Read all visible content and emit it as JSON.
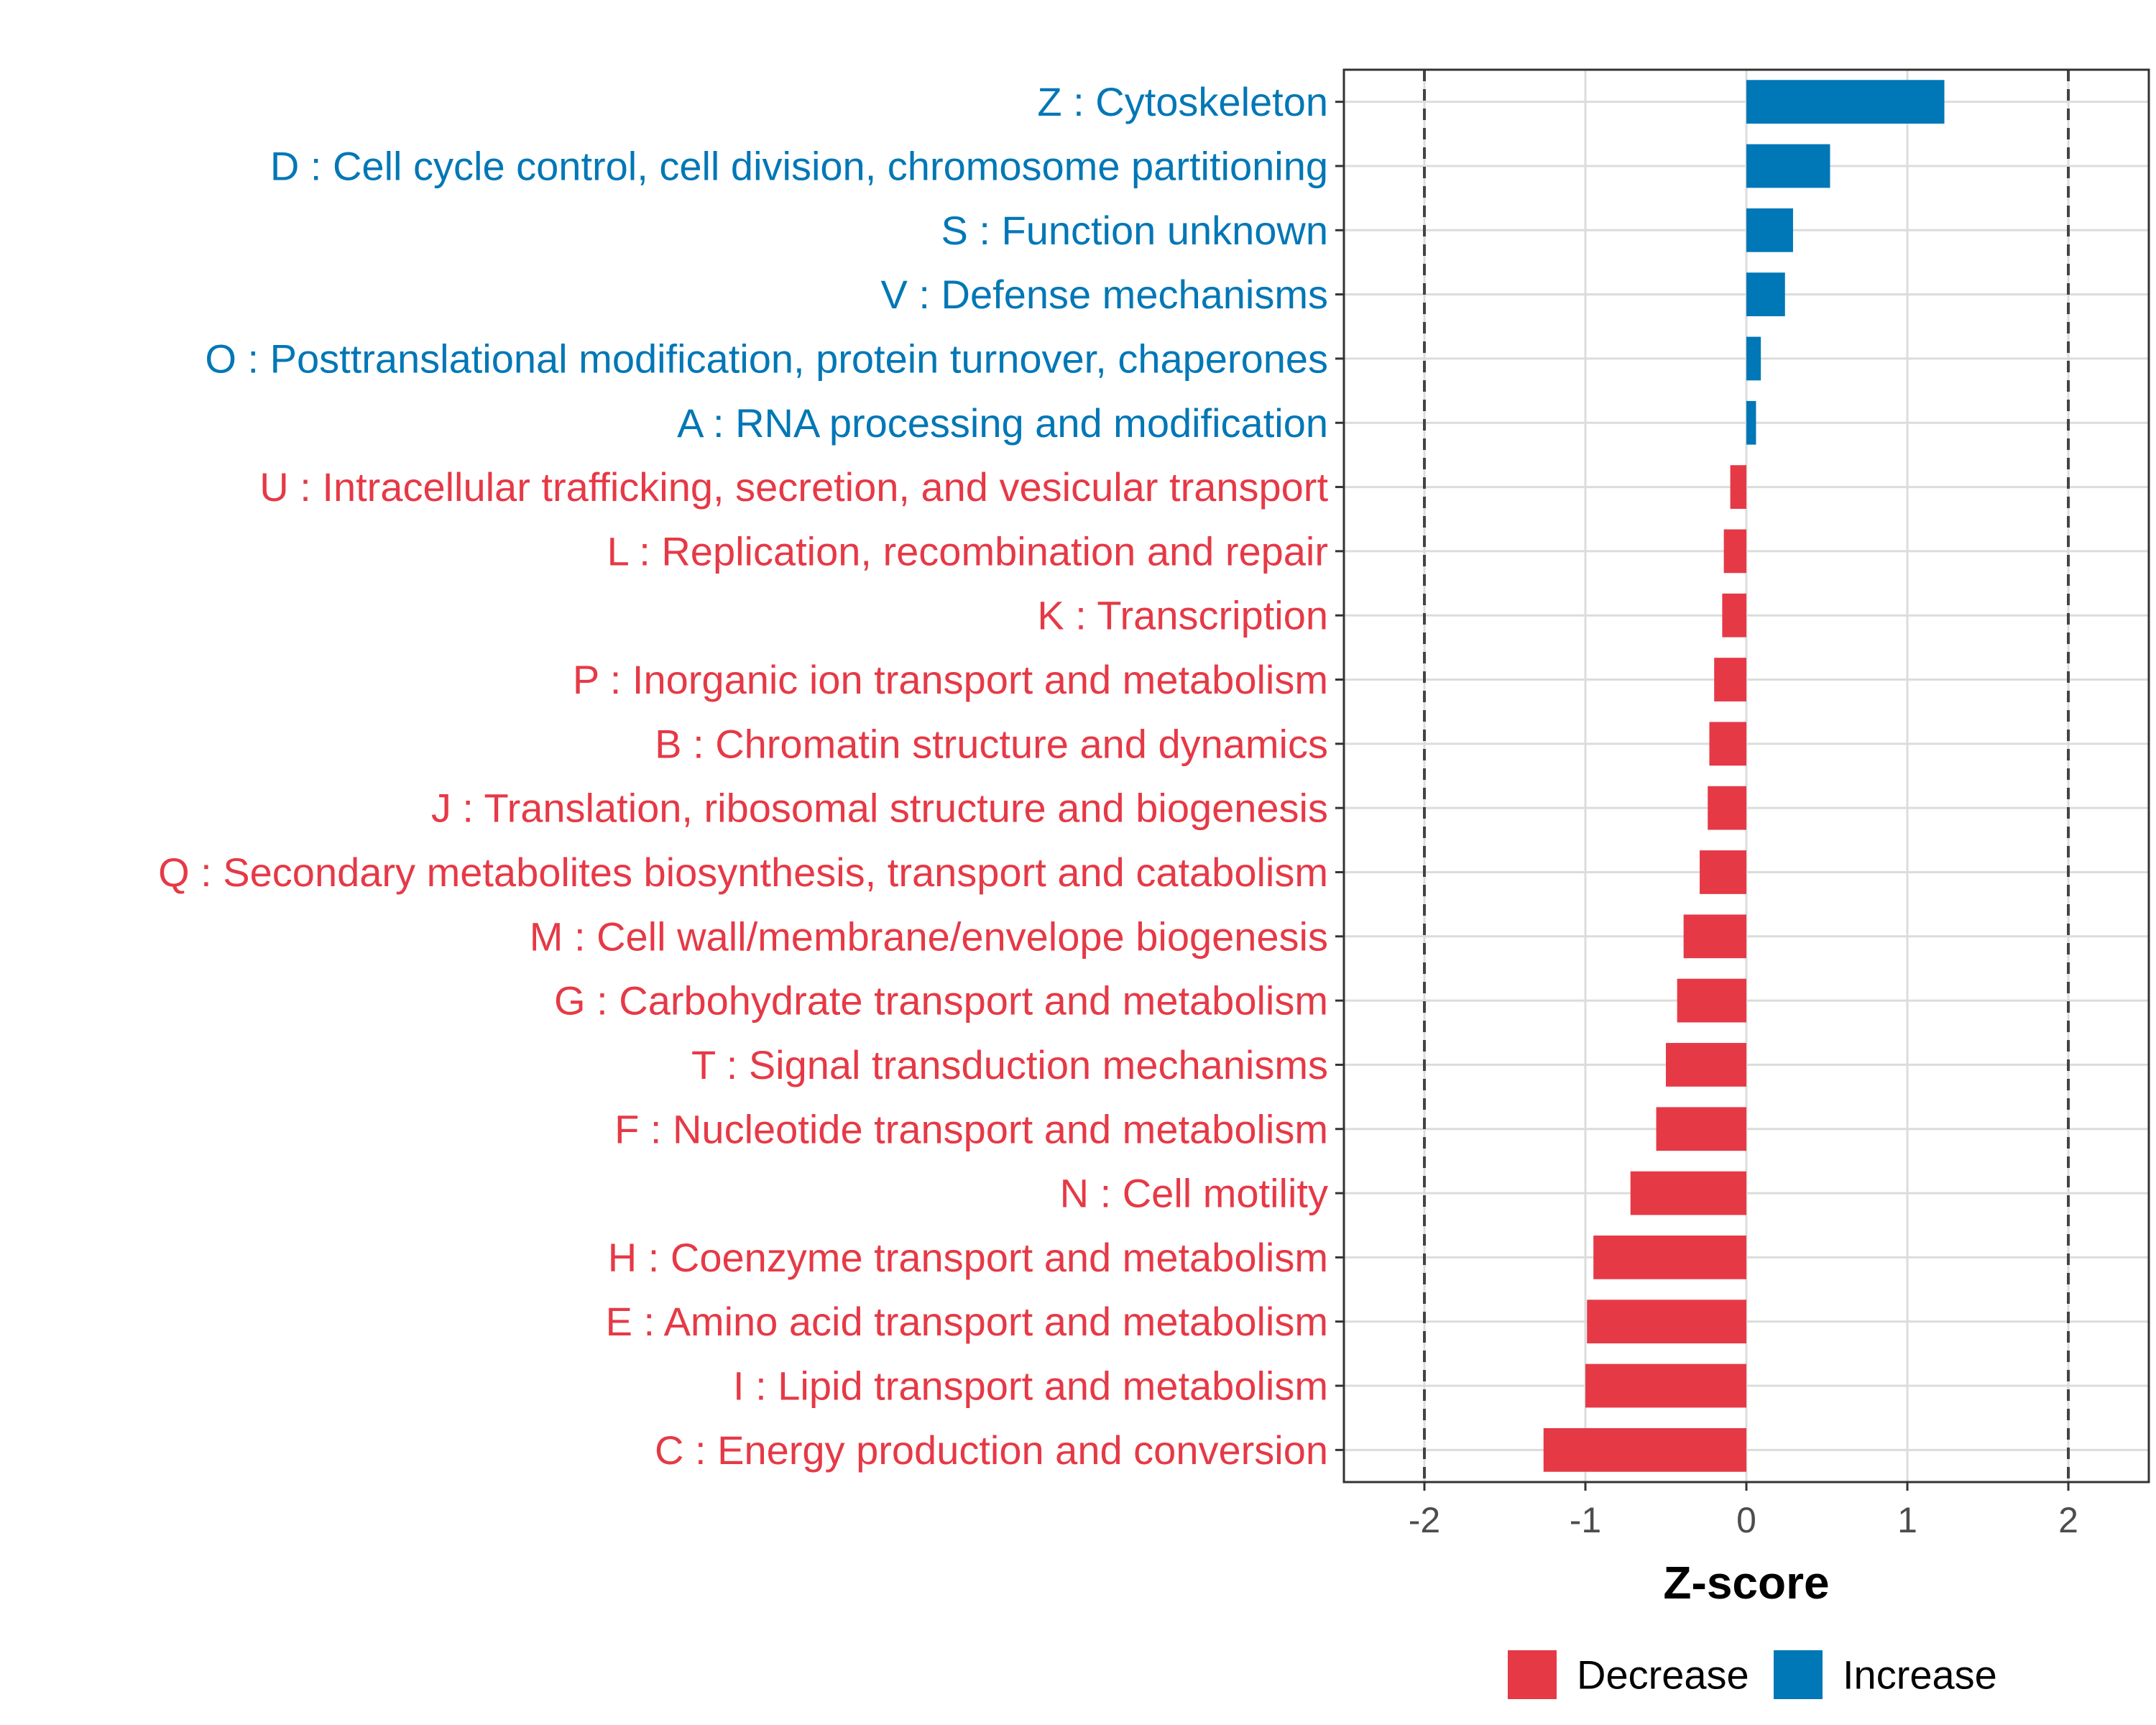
{
  "chart_data": {
    "type": "bar",
    "orientation": "horizontal",
    "title": "",
    "xlabel": "Z-score",
    "ylabel": "",
    "xlim": [
      -2.5,
      2.5
    ],
    "xticks": [
      -2,
      -1,
      0,
      1,
      2
    ],
    "xtick_labels": [
      "-2",
      "-1",
      "0",
      "1",
      "2"
    ],
    "reference_lines": [
      -2,
      2
    ],
    "grid": true,
    "colors": {
      "Increase": "#0077b6",
      "Decrease": "#e63946"
    },
    "categories": [
      "Z : Cytoskeleton",
      "D : Cell cycle control, cell division, chromosome partitioning",
      "S : Function unknown",
      "V : Defense mechanisms",
      "O : Posttranslational modification, protein turnover, chaperones",
      "A : RNA processing and modification",
      "U : Intracellular trafficking, secretion, and vesicular transport",
      "L : Replication, recombination and repair",
      "K : Transcription",
      "P : Inorganic ion transport and metabolism",
      "B : Chromatin structure and dynamics",
      "J : Translation, ribosomal structure and biogenesis",
      "Q : Secondary metabolites biosynthesis, transport and catabolism",
      "M : Cell wall/membrane/envelope biogenesis",
      "G : Carbohydrate transport and metabolism",
      "T : Signal transduction mechanisms",
      "F : Nucleotide transport and metabolism",
      "N : Cell motility",
      "H : Coenzyme transport and metabolism",
      "E : Amino acid transport and metabolism",
      "I : Lipid transport and metabolism",
      "C : Energy production and conversion"
    ],
    "values": [
      1.23,
      0.52,
      0.29,
      0.24,
      0.09,
      0.06,
      -0.1,
      -0.14,
      -0.15,
      -0.2,
      -0.23,
      -0.24,
      -0.29,
      -0.39,
      -0.43,
      -0.5,
      -0.56,
      -0.72,
      -0.95,
      -0.99,
      -1.0,
      -1.26
    ],
    "groups": [
      "Increase",
      "Increase",
      "Increase",
      "Increase",
      "Increase",
      "Increase",
      "Decrease",
      "Decrease",
      "Decrease",
      "Decrease",
      "Decrease",
      "Decrease",
      "Decrease",
      "Decrease",
      "Decrease",
      "Decrease",
      "Decrease",
      "Decrease",
      "Decrease",
      "Decrease",
      "Decrease",
      "Decrease"
    ],
    "legend": {
      "position": "bottom",
      "entries": [
        "Decrease",
        "Increase"
      ]
    }
  }
}
